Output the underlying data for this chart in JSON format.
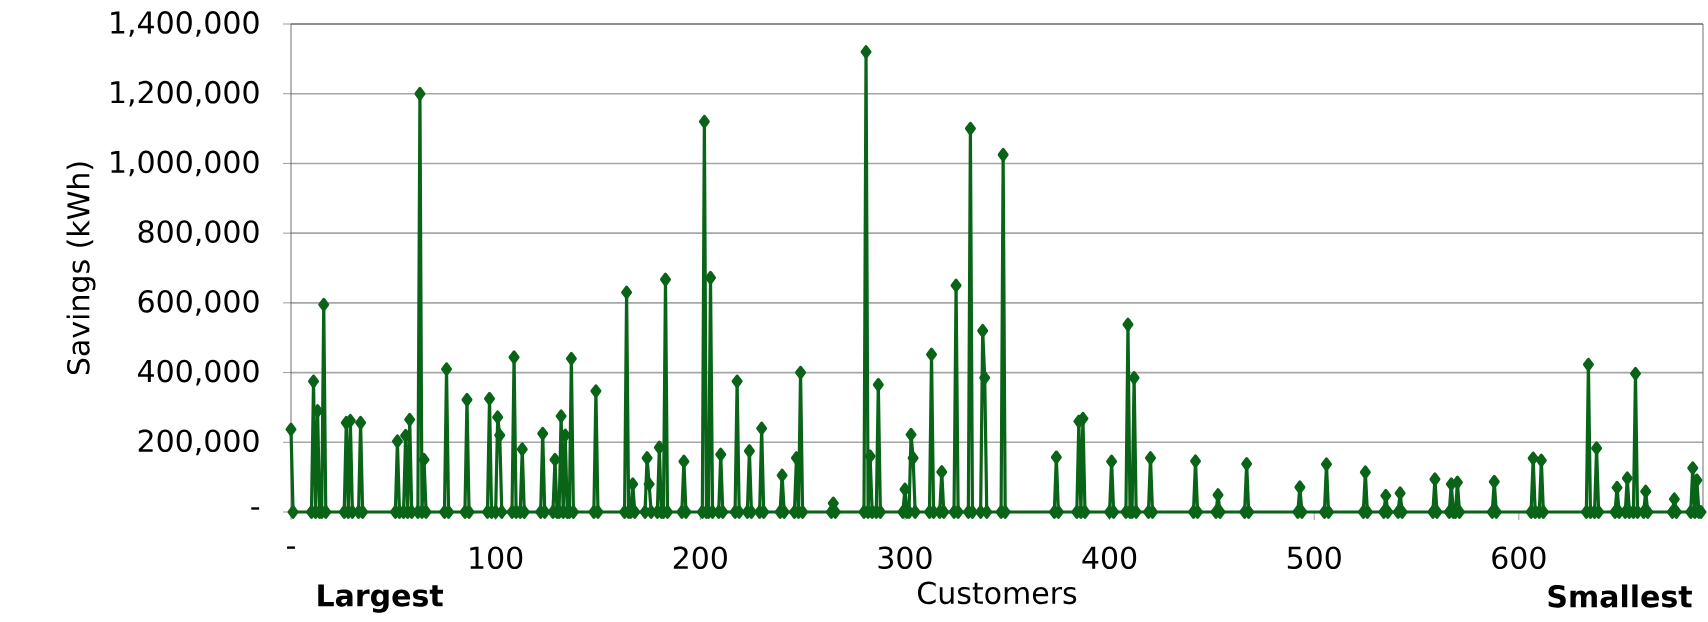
{
  "chart_data": {
    "type": "line",
    "xlabel": "Customers",
    "ylabel": "Savings (kWh)",
    "annotations": [
      "Largest",
      "Smallest"
    ],
    "x": [
      0,
      1,
      10,
      11,
      12,
      13,
      14,
      15,
      16,
      17,
      26,
      27,
      28,
      29,
      30,
      33,
      34,
      35,
      51,
      52,
      53,
      55,
      56,
      57,
      58,
      59,
      62,
      63,
      64,
      65,
      66,
      75,
      76,
      77,
      85,
      86,
      87,
      96,
      97,
      98,
      100,
      101,
      102,
      103,
      108,
      109,
      110,
      112,
      113,
      114,
      122,
      123,
      124,
      128,
      129,
      130,
      131,
      132,
      133,
      134,
      135,
      136,
      137,
      138,
      148,
      149,
      150,
      163,
      164,
      165,
      166,
      167,
      168,
      173,
      174,
      175,
      176,
      179,
      180,
      181,
      182,
      183,
      184,
      191,
      192,
      193,
      201,
      202,
      203,
      204,
      205,
      206,
      209,
      210,
      211,
      217,
      218,
      219,
      223,
      224,
      225,
      229,
      230,
      231,
      239,
      240,
      241,
      246,
      247,
      248,
      249,
      250,
      264,
      265,
      266,
      280,
      281,
      282,
      283,
      284,
      286,
      287,
      288,
      299,
      300,
      301,
      302,
      303,
      304,
      305,
      312,
      313,
      314,
      317,
      318,
      319,
      324,
      325,
      326,
      331,
      332,
      333,
      337,
      338,
      339,
      340,
      347,
      348,
      349,
      373,
      374,
      375,
      384,
      385,
      386,
      387,
      388,
      400,
      401,
      402,
      408,
      409,
      410,
      411,
      412,
      413,
      419,
      420,
      421,
      441,
      442,
      443,
      452,
      453,
      454,
      466,
      467,
      468,
      492,
      493,
      494,
      505,
      506,
      507,
      524,
      525,
      526,
      534,
      535,
      536,
      541,
      542,
      543,
      558,
      559,
      560,
      566,
      567,
      568,
      569,
      570,
      571,
      587,
      588,
      589,
      606,
      607,
      608,
      610,
      611,
      612,
      633,
      634,
      635,
      637,
      638,
      639,
      647,
      648,
      649,
      652,
      653,
      654,
      656,
      657,
      658,
      661,
      662,
      663,
      675,
      676,
      677,
      684,
      685,
      686,
      687,
      688,
      689
    ],
    "series": [
      {
        "color": "#0a6418",
        "values": [
          237000,
          0,
          0,
          375000,
          0,
          290000,
          0,
          0,
          595000,
          0,
          0,
          256000,
          0,
          262000,
          0,
          0,
          256000,
          0,
          0,
          203000,
          0,
          0,
          219000,
          0,
          265000,
          0,
          0,
          1200000,
          0,
          150000,
          0,
          0,
          410000,
          0,
          0,
          322000,
          0,
          0,
          325000,
          0,
          0,
          272000,
          220000,
          0,
          0,
          444000,
          0,
          0,
          180000,
          0,
          0,
          225000,
          0,
          0,
          150000,
          0,
          0,
          275000,
          0,
          220000,
          0,
          0,
          440000,
          0,
          0,
          347000,
          0,
          0,
          630000,
          0,
          0,
          80000,
          0,
          0,
          155000,
          80000,
          0,
          0,
          185000,
          0,
          0,
          667000,
          0,
          0,
          145000,
          0,
          0,
          1120000,
          0,
          0,
          672000,
          0,
          0,
          165000,
          0,
          0,
          375000,
          0,
          0,
          175000,
          0,
          0,
          240000,
          0,
          0,
          105000,
          0,
          0,
          155000,
          0,
          400000,
          0,
          0,
          25000,
          0,
          0,
          1320000,
          0,
          160000,
          0,
          0,
          365000,
          0,
          0,
          65000,
          0,
          0,
          222000,
          155000,
          0,
          0,
          452000,
          0,
          0,
          115000,
          0,
          0,
          650000,
          0,
          0,
          1100000,
          0,
          0,
          520000,
          385000,
          0,
          0,
          1025000,
          0,
          0,
          157000,
          0,
          0,
          260000,
          0,
          268000,
          0,
          0,
          145000,
          0,
          0,
          538000,
          0,
          0,
          385000,
          0,
          0,
          155000,
          0,
          0,
          146000,
          0,
          0,
          49000,
          0,
          0,
          138000,
          0,
          0,
          71000,
          0,
          0,
          137000,
          0,
          0,
          114000,
          0,
          0,
          47000,
          0,
          0,
          54000,
          0,
          0,
          94000,
          0,
          0,
          80000,
          0,
          0,
          85000,
          0,
          0,
          87000,
          0,
          0,
          154000,
          0,
          0,
          148000,
          0,
          0,
          423000,
          0,
          0,
          183000,
          0,
          0,
          70000,
          0,
          0,
          97000,
          0,
          0,
          397000,
          0,
          0,
          59000,
          0,
          0,
          37000,
          0,
          0,
          126000,
          0,
          91000,
          0,
          0
        ]
      }
    ],
    "xlim": [
      0,
      690
    ],
    "ylim": [
      0,
      1400000
    ],
    "xticks": [
      {
        "value": 0,
        "label": "-"
      },
      100,
      200,
      300,
      400,
      500,
      600
    ],
    "yticks": [
      {
        "value": 0,
        "label": "-"
      },
      {
        "value": 200000,
        "label": "200,000"
      },
      {
        "value": 400000,
        "label": "400,000"
      },
      {
        "value": 600000,
        "label": "600,000"
      },
      {
        "value": 800000,
        "label": "800,000"
      },
      {
        "value": 1000000,
        "label": "1,000,000"
      },
      {
        "value": 1200000,
        "label": "1,200,000"
      },
      {
        "value": 1400000,
        "label": "1,400,000"
      }
    ],
    "grid": "y",
    "marker": "diamond",
    "line_style": "solid"
  }
}
